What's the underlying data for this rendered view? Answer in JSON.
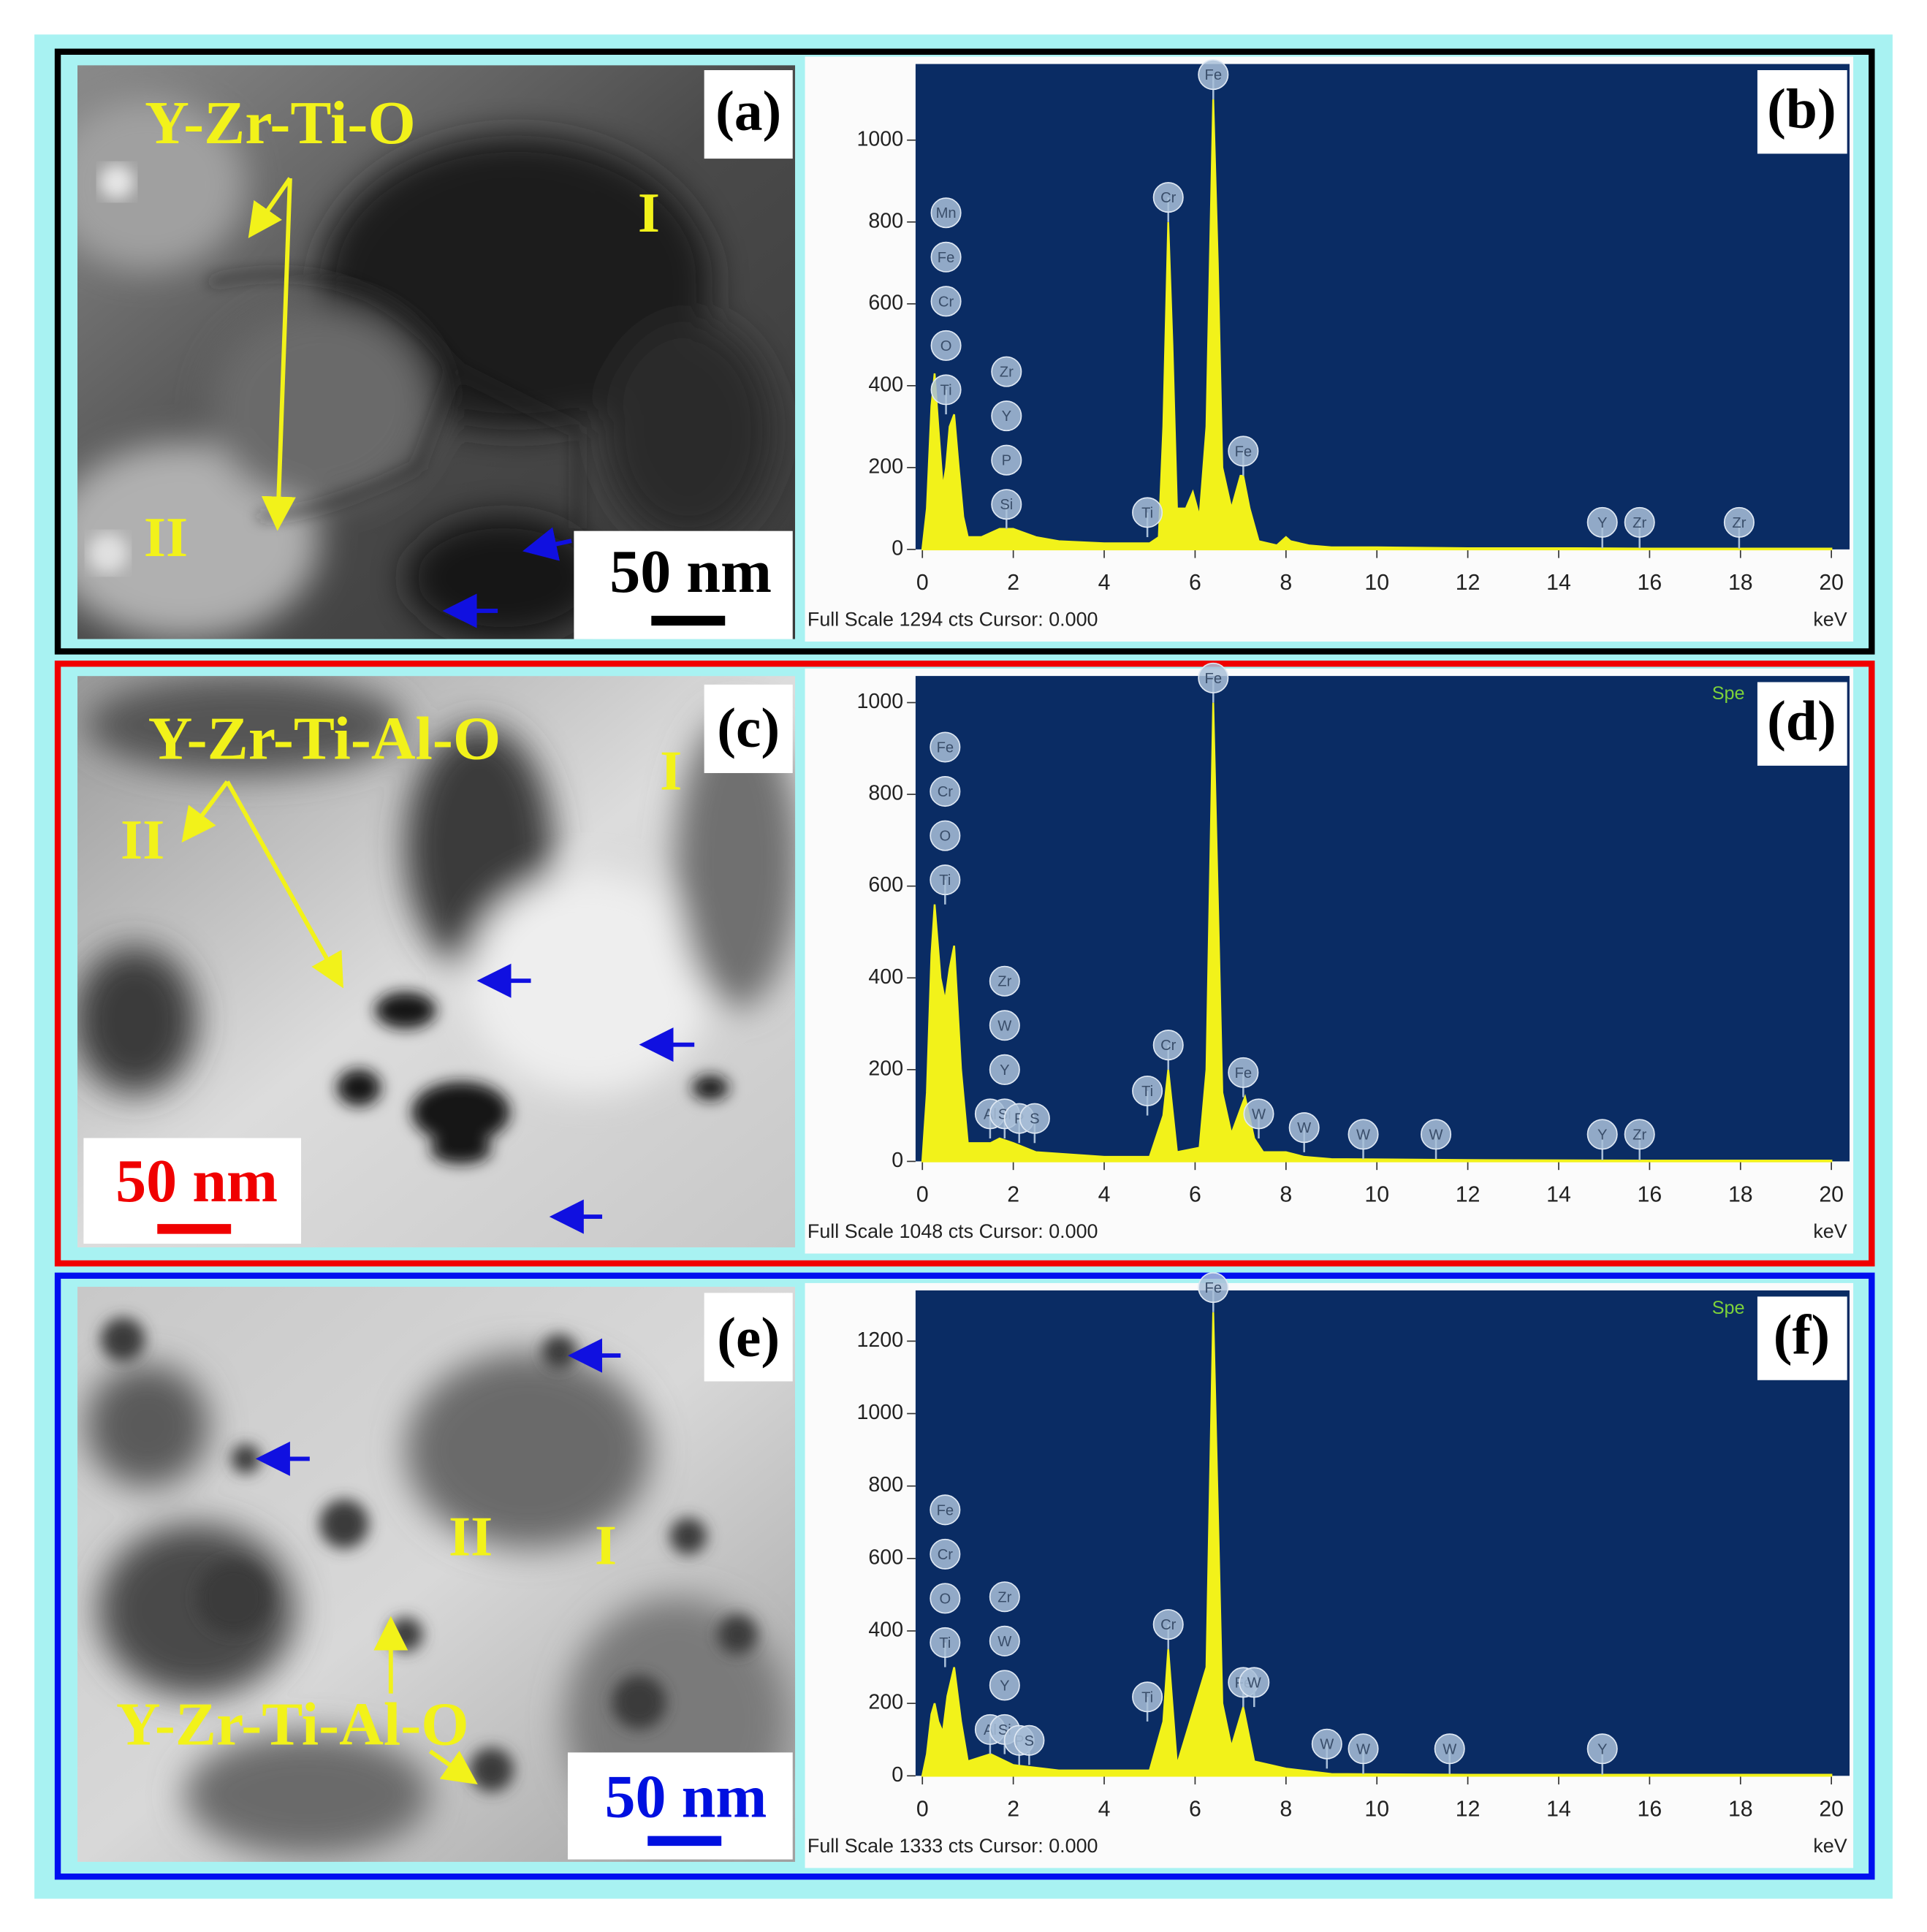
{
  "panels": [
    {
      "label": "(a)",
      "phase_label": "Y-Zr-Ti-O",
      "region_labels": [
        "I",
        "II"
      ],
      "scale_bar": "50 nm"
    },
    {
      "label": "(c)",
      "phase_label": "Y-Zr-Ti-Al-O",
      "region_labels": [
        "II",
        "I"
      ],
      "scale_bar": "50 nm"
    },
    {
      "label": "(e)",
      "phase_label": "Y-Zr-Ti-Al-O",
      "region_labels": [
        "II",
        "I"
      ],
      "scale_bar": "50 nm"
    }
  ],
  "chart_data": [
    {
      "type": "line",
      "panel_label": "(b)",
      "xlabel": "keV",
      "footer": "Full Scale 1294 cts Cursor: 0.000",
      "color": "#f2f21a",
      "plot_color": "#0a2c64",
      "x": [
        0,
        0.1,
        0.2,
        0.27,
        0.35,
        0.45,
        0.52,
        0.6,
        0.7,
        0.8,
        0.9,
        1.0,
        1.3,
        1.7,
        2.0,
        2.5,
        3,
        4,
        5,
        5.2,
        5.3,
        5.41,
        5.5,
        5.6,
        5.8,
        5.95,
        6.1,
        6.25,
        6.4,
        6.5,
        6.6,
        6.8,
        7.0,
        7.06,
        7.2,
        7.4,
        7.8,
        8.0,
        8.1,
        8.5,
        9,
        10,
        12,
        14,
        16,
        18,
        20
      ],
      "values": [
        0,
        100,
        350,
        430,
        300,
        150,
        200,
        300,
        330,
        200,
        80,
        30,
        30,
        50,
        50,
        30,
        20,
        15,
        15,
        30,
        300,
        800,
        500,
        100,
        100,
        140,
        80,
        300,
        1100,
        700,
        200,
        100,
        180,
        180,
        100,
        20,
        10,
        30,
        20,
        10,
        5,
        5,
        3,
        3,
        2,
        2,
        2
      ],
      "xlim": [
        -0.15,
        20.4
      ],
      "xticks": [
        0,
        2,
        4,
        6,
        8,
        10,
        12,
        14,
        16,
        18,
        20
      ],
      "ylim": [
        0,
        1186
      ],
      "yticks": [
        0,
        200,
        400,
        600,
        800,
        1000
      ],
      "peak_labels": [
        {
          "x": 0.52,
          "labels": [
            "Ti",
            "O",
            "Cr",
            "Fe",
            "Mn"
          ]
        },
        {
          "x": 1.85,
          "labels": [
            "Si",
            "P",
            "Y",
            "Zr"
          ]
        },
        {
          "x": 4.95,
          "labels": [
            "Ti"
          ]
        },
        {
          "x": 5.41,
          "labels": [
            "Cr"
          ]
        },
        {
          "x": 6.4,
          "labels": [
            "Fe"
          ]
        },
        {
          "x": 7.06,
          "labels": [
            "Fe"
          ]
        },
        {
          "x": 14.96,
          "labels": [
            "Y"
          ]
        },
        {
          "x": 15.78,
          "labels": [
            "Zr"
          ]
        },
        {
          "x": 17.97,
          "labels": [
            "Zr"
          ]
        }
      ]
    },
    {
      "type": "line",
      "panel_label": "(d)",
      "xlabel": "keV",
      "footer": "Full Scale 1048 cts Cursor: 0.000",
      "corner_text": "Spe",
      "color": "#f2f21a",
      "plot_color": "#0a2c64",
      "x": [
        0,
        0.1,
        0.2,
        0.27,
        0.4,
        0.5,
        0.6,
        0.7,
        0.85,
        1.0,
        1.5,
        1.7,
        2.0,
        2.5,
        4,
        5,
        5.3,
        5.41,
        5.6,
        6.1,
        6.25,
        6.4,
        6.6,
        6.8,
        7.06,
        7.1,
        7.3,
        7.5,
        8.0,
        8.4,
        9,
        12,
        16,
        20
      ],
      "values": [
        0,
        150,
        450,
        560,
        400,
        350,
        420,
        470,
        200,
        40,
        40,
        50,
        40,
        20,
        10,
        10,
        100,
        200,
        20,
        30,
        200,
        1000,
        150,
        60,
        130,
        140,
        50,
        20,
        20,
        10,
        5,
        3,
        2,
        2
      ],
      "xlim": [
        -0.15,
        20.4
      ],
      "xticks": [
        0,
        2,
        4,
        6,
        8,
        10,
        12,
        14,
        16,
        18,
        20
      ],
      "ylim": [
        0,
        1058
      ],
      "yticks": [
        0,
        200,
        400,
        600,
        800,
        1000
      ],
      "peak_labels": [
        {
          "x": 0.5,
          "labels": [
            "Ti",
            "O",
            "Cr",
            "Fe"
          ]
        },
        {
          "x": 1.49,
          "labels": [
            "Al"
          ]
        },
        {
          "x": 1.81,
          "labels": [
            "Si",
            "Y",
            "W",
            "Zr"
          ]
        },
        {
          "x": 2.13,
          "labels": [
            "P"
          ]
        },
        {
          "x": 2.47,
          "labels": [
            "S"
          ]
        },
        {
          "x": 4.95,
          "labels": [
            "Ti"
          ]
        },
        {
          "x": 5.41,
          "labels": [
            "Cr"
          ]
        },
        {
          "x": 6.4,
          "labels": [
            "Fe"
          ]
        },
        {
          "x": 7.06,
          "labels": [
            "Fe"
          ]
        },
        {
          "x": 7.4,
          "labels": [
            "W"
          ]
        },
        {
          "x": 8.4,
          "labels": [
            "W"
          ]
        },
        {
          "x": 9.7,
          "labels": [
            "W"
          ]
        },
        {
          "x": 11.3,
          "labels": [
            "W"
          ]
        },
        {
          "x": 14.96,
          "labels": [
            "Y"
          ]
        },
        {
          "x": 15.78,
          "labels": [
            "Zr"
          ]
        }
      ]
    },
    {
      "type": "line",
      "panel_label": "(f)",
      "xlabel": "keV",
      "footer": "Full Scale 1333 cts Cursor: 0.000",
      "corner_text": "Spe",
      "color": "#f2f21a",
      "plot_color": "#0a2c64",
      "x": [
        0,
        0.1,
        0.2,
        0.27,
        0.35,
        0.45,
        0.55,
        0.7,
        0.85,
        1.0,
        1.5,
        2,
        3,
        5,
        5.3,
        5.41,
        5.6,
        6.25,
        6.4,
        6.6,
        6.8,
        7.06,
        7.3,
        8,
        9,
        12,
        16,
        20
      ],
      "values": [
        0,
        60,
        170,
        200,
        150,
        120,
        220,
        300,
        150,
        40,
        60,
        30,
        15,
        15,
        150,
        350,
        30,
        300,
        1280,
        200,
        80,
        190,
        40,
        20,
        5,
        3,
        3,
        3
      ],
      "xlim": [
        -0.15,
        20.4
      ],
      "xticks": [
        0,
        2,
        4,
        6,
        8,
        10,
        12,
        14,
        16,
        18,
        20
      ],
      "ylim": [
        0,
        1340
      ],
      "yticks": [
        0,
        200,
        400,
        600,
        800,
        1000,
        1200
      ],
      "peak_labels": [
        {
          "x": 0.5,
          "labels": [
            "Ti",
            "O",
            "Cr",
            "Fe"
          ]
        },
        {
          "x": 1.49,
          "labels": [
            "Al"
          ]
        },
        {
          "x": 1.81,
          "labels": [
            "Si",
            "Y",
            "W",
            "Zr"
          ]
        },
        {
          "x": 2.13,
          "labels": [
            "P"
          ]
        },
        {
          "x": 2.35,
          "labels": [
            "S"
          ]
        },
        {
          "x": 4.95,
          "labels": [
            "Ti"
          ]
        },
        {
          "x": 5.41,
          "labels": [
            "Cr"
          ]
        },
        {
          "x": 6.4,
          "labels": [
            "Fe"
          ]
        },
        {
          "x": 7.06,
          "labels": [
            "Fe"
          ]
        },
        {
          "x": 7.3,
          "labels": [
            "W"
          ]
        },
        {
          "x": 8.9,
          "labels": [
            "W"
          ]
        },
        {
          "x": 9.7,
          "labels": [
            "W"
          ]
        },
        {
          "x": 11.6,
          "labels": [
            "W"
          ]
        },
        {
          "x": 14.96,
          "labels": [
            "Y"
          ]
        }
      ]
    }
  ]
}
